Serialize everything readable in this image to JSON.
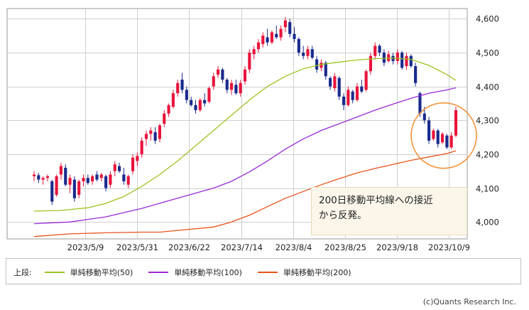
{
  "chart_data": {
    "type": "candlestick",
    "x_tick_labels": [
      "2023/5/9",
      "2023/5/31",
      "2023/6/22",
      "2023/7/14",
      "2023/8/4",
      "2023/8/25",
      "2023/9/18",
      "2023/10/9"
    ],
    "y_tick_labels": [
      "4,000",
      "4,100",
      "4,200",
      "4,300",
      "4,400",
      "4,500",
      "4,600"
    ],
    "y_ticks": [
      4000,
      4100,
      4200,
      4300,
      4400,
      4500,
      4600
    ],
    "ylim": [
      3950,
      4630
    ],
    "grid": true,
    "up_color": "#e8143c",
    "down_color": "#1a2a8c",
    "ohlc": [
      [
        4135,
        4150,
        4120,
        4140
      ],
      [
        4138,
        4145,
        4115,
        4125
      ],
      [
        4125,
        4135,
        4110,
        4130
      ],
      [
        4130,
        4140,
        4120,
        4135
      ],
      [
        4120,
        4125,
        4050,
        4060
      ],
      [
        4080,
        4140,
        4075,
        4135
      ],
      [
        4140,
        4175,
        4125,
        4165
      ],
      [
        4160,
        4170,
        4105,
        4110
      ],
      [
        4110,
        4140,
        4085,
        4130
      ],
      [
        4125,
        4135,
        4060,
        4070
      ],
      [
        4080,
        4125,
        4070,
        4120
      ],
      [
        4120,
        4140,
        4105,
        4130
      ],
      [
        4130,
        4140,
        4110,
        4115
      ],
      [
        4120,
        4140,
        4110,
        4135
      ],
      [
        4140,
        4150,
        4120,
        4125
      ],
      [
        4130,
        4145,
        4120,
        4140
      ],
      [
        4135,
        4140,
        4090,
        4100
      ],
      [
        4110,
        4150,
        4100,
        4140
      ],
      [
        4150,
        4180,
        4135,
        4170
      ],
      [
        4165,
        4175,
        4145,
        4150
      ],
      [
        4140,
        4160,
        4110,
        4120
      ],
      [
        4110,
        4140,
        4100,
        4135
      ],
      [
        4150,
        4200,
        4140,
        4190
      ],
      [
        4180,
        4205,
        4165,
        4195
      ],
      [
        4200,
        4250,
        4190,
        4240
      ],
      [
        4245,
        4270,
        4225,
        4260
      ],
      [
        4260,
        4280,
        4240,
        4270
      ],
      [
        4265,
        4280,
        4230,
        4240
      ],
      [
        4245,
        4290,
        4235,
        4285
      ],
      [
        4290,
        4330,
        4280,
        4320
      ],
      [
        4320,
        4350,
        4310,
        4345
      ],
      [
        4340,
        4390,
        4335,
        4380
      ],
      [
        4380,
        4420,
        4370,
        4410
      ],
      [
        4420,
        4440,
        4380,
        4390
      ],
      [
        4390,
        4400,
        4350,
        4360
      ],
      [
        4360,
        4370,
        4340,
        4345
      ],
      [
        4345,
        4360,
        4320,
        4330
      ],
      [
        4330,
        4365,
        4325,
        4360
      ],
      [
        4360,
        4380,
        4340,
        4350
      ],
      [
        4355,
        4400,
        4350,
        4395
      ],
      [
        4400,
        4440,
        4390,
        4430
      ],
      [
        4435,
        4460,
        4425,
        4450
      ],
      [
        4450,
        4455,
        4410,
        4420
      ],
      [
        4420,
        4425,
        4380,
        4390
      ],
      [
        4390,
        4420,
        4375,
        4410
      ],
      [
        4405,
        4420,
        4375,
        4380
      ],
      [
        4380,
        4420,
        4370,
        4410
      ],
      [
        4415,
        4460,
        4405,
        4450
      ],
      [
        4450,
        4510,
        4440,
        4500
      ],
      [
        4495,
        4520,
        4480,
        4510
      ],
      [
        4510,
        4540,
        4500,
        4530
      ],
      [
        4525,
        4560,
        4515,
        4550
      ],
      [
        4545,
        4570,
        4520,
        4530
      ],
      [
        4530,
        4565,
        4525,
        4560
      ],
      [
        4555,
        4580,
        4540,
        4545
      ],
      [
        4545,
        4580,
        4535,
        4570
      ],
      [
        4575,
        4605,
        4560,
        4595
      ],
      [
        4590,
        4600,
        4545,
        4555
      ],
      [
        4555,
        4575,
        4530,
        4540
      ],
      [
        4540,
        4545,
        4490,
        4500
      ],
      [
        4500,
        4520,
        4480,
        4490
      ],
      [
        4490,
        4520,
        4480,
        4510
      ],
      [
        4510,
        4520,
        4480,
        4485
      ],
      [
        4480,
        4490,
        4440,
        4450
      ],
      [
        4455,
        4480,
        4445,
        4470
      ],
      [
        4470,
        4475,
        4420,
        4430
      ],
      [
        4425,
        4430,
        4390,
        4400
      ],
      [
        4395,
        4440,
        4385,
        4430
      ],
      [
        4425,
        4430,
        4360,
        4370
      ],
      [
        4370,
        4380,
        4330,
        4345
      ],
      [
        4345,
        4400,
        4340,
        4390
      ],
      [
        4385,
        4390,
        4350,
        4360
      ],
      [
        4360,
        4410,
        4355,
        4400
      ],
      [
        4400,
        4420,
        4380,
        4385
      ],
      [
        4390,
        4450,
        4385,
        4445
      ],
      [
        4445,
        4500,
        4435,
        4490
      ],
      [
        4490,
        4530,
        4480,
        4520
      ],
      [
        4520,
        4525,
        4490,
        4500
      ],
      [
        4500,
        4510,
        4460,
        4470
      ],
      [
        4475,
        4505,
        4470,
        4495
      ],
      [
        4490,
        4500,
        4465,
        4475
      ],
      [
        4475,
        4510,
        4465,
        4500
      ],
      [
        4500,
        4505,
        4450,
        4455
      ],
      [
        4460,
        4500,
        4450,
        4490
      ],
      [
        4490,
        4495,
        4455,
        4460
      ],
      [
        4460,
        4470,
        4400,
        4410
      ],
      [
        4380,
        4385,
        4310,
        4320
      ],
      [
        4320,
        4340,
        4290,
        4300
      ],
      [
        4300,
        4310,
        4230,
        4240
      ],
      [
        4245,
        4275,
        4240,
        4270
      ],
      [
        4270,
        4275,
        4220,
        4230
      ],
      [
        4235,
        4265,
        4230,
        4260
      ],
      [
        4255,
        4260,
        4215,
        4220
      ],
      [
        4220,
        4265,
        4215,
        4255
      ],
      [
        4255,
        4340,
        4250,
        4330
      ]
    ],
    "series": [
      {
        "name": "単純移動平均(50)",
        "color": "#9cc31f",
        "points": [
          [
            0,
            4032
          ],
          [
            6,
            4034
          ],
          [
            12,
            4042
          ],
          [
            16,
            4055
          ],
          [
            20,
            4075
          ],
          [
            24,
            4105
          ],
          [
            28,
            4140
          ],
          [
            32,
            4180
          ],
          [
            36,
            4225
          ],
          [
            40,
            4270
          ],
          [
            44,
            4315
          ],
          [
            48,
            4360
          ],
          [
            52,
            4400
          ],
          [
            56,
            4430
          ],
          [
            60,
            4452
          ],
          [
            64,
            4465
          ],
          [
            68,
            4472
          ],
          [
            72,
            4478
          ],
          [
            76,
            4482
          ],
          [
            80,
            4484
          ],
          [
            84,
            4480
          ],
          [
            88,
            4462
          ],
          [
            92,
            4435
          ],
          [
            94,
            4418
          ]
        ]
      },
      {
        "name": "単純移動平均(100)",
        "color": "#9a2bd6",
        "points": [
          [
            0,
            3995
          ],
          [
            8,
            4000
          ],
          [
            16,
            4015
          ],
          [
            24,
            4040
          ],
          [
            32,
            4070
          ],
          [
            40,
            4100
          ],
          [
            44,
            4120
          ],
          [
            48,
            4148
          ],
          [
            52,
            4180
          ],
          [
            56,
            4215
          ],
          [
            60,
            4245
          ],
          [
            64,
            4270
          ],
          [
            68,
            4290
          ],
          [
            72,
            4310
          ],
          [
            76,
            4330
          ],
          [
            80,
            4348
          ],
          [
            84,
            4365
          ],
          [
            88,
            4380
          ],
          [
            92,
            4390
          ],
          [
            94,
            4396
          ]
        ]
      },
      {
        "name": "単純移動平均(200)",
        "color": "#e8531c",
        "points": [
          [
            0,
            3957
          ],
          [
            8,
            3965
          ],
          [
            16,
            3968
          ],
          [
            24,
            3970
          ],
          [
            28,
            3970
          ],
          [
            32,
            3975
          ],
          [
            40,
            3985
          ],
          [
            44,
            4000
          ],
          [
            48,
            4020
          ],
          [
            52,
            4045
          ],
          [
            56,
            4070
          ],
          [
            60,
            4090
          ],
          [
            64,
            4110
          ],
          [
            68,
            4128
          ],
          [
            72,
            4145
          ],
          [
            76,
            4158
          ],
          [
            80,
            4170
          ],
          [
            84,
            4182
          ],
          [
            88,
            4192
          ],
          [
            92,
            4202
          ],
          [
            94,
            4210
          ]
        ]
      }
    ],
    "annotation": "200日移動平均線への接近から反発。"
  },
  "legend": {
    "prefix": "上段:",
    "items": [
      {
        "label": "単純移動平均(50)",
        "color": "#9cc31f"
      },
      {
        "label": "単純移動平均(100)",
        "color": "#9a2bd6"
      },
      {
        "label": "単純移動平均(200)",
        "color": "#e8531c"
      }
    ]
  },
  "credit": "(c)Quants Research Inc.",
  "note_lines": [
    "200日移動平均線への接近",
    "から反発。"
  ]
}
